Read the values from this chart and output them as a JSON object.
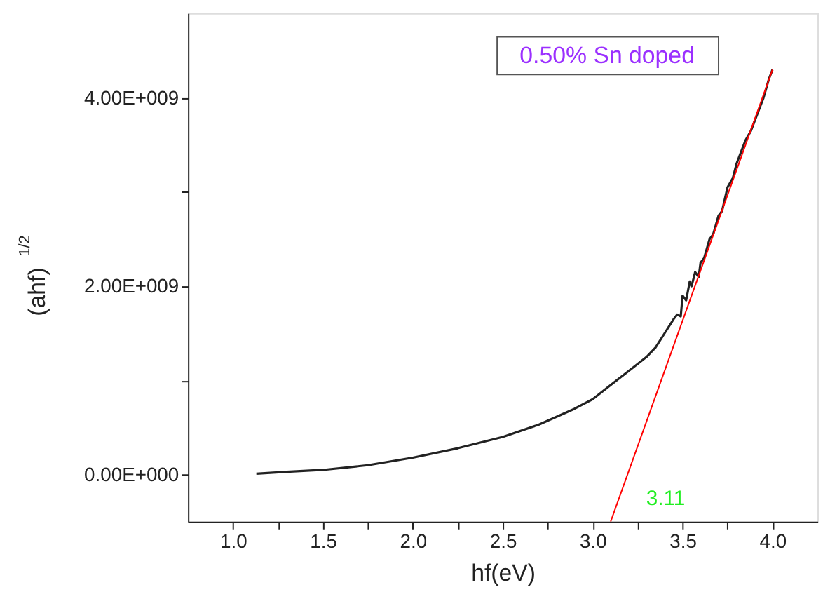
{
  "chart_data": {
    "type": "line",
    "xlabel": "hf(eV)",
    "ylabel": "(ahf)$^{1/2}$",
    "xlim": [
      0.75,
      4.25
    ],
    "ylim": [
      -500000000,
      4900000000
    ],
    "xticks": [
      {
        "value": 1.0,
        "label": "1.0"
      },
      {
        "value": 1.25,
        "label": null
      },
      {
        "value": 1.5,
        "label": "1.5"
      },
      {
        "value": 1.75,
        "label": null
      },
      {
        "value": 2.0,
        "label": "2.0"
      },
      {
        "value": 2.25,
        "label": null
      },
      {
        "value": 2.5,
        "label": "2.5"
      },
      {
        "value": 2.75,
        "label": null
      },
      {
        "value": 3.0,
        "label": "3.0"
      },
      {
        "value": 3.25,
        "label": null
      },
      {
        "value": 3.5,
        "label": "3.5"
      },
      {
        "value": 3.75,
        "label": null
      },
      {
        "value": 4.0,
        "label": "4.0"
      }
    ],
    "yticks": [
      {
        "value": 0,
        "label": "0.00E+000"
      },
      {
        "value": 1000000000,
        "label": null
      },
      {
        "value": 2000000000,
        "label": "2.00E+009"
      },
      {
        "value": 3000000000,
        "label": null
      },
      {
        "value": 4000000000,
        "label": "4.00E+009"
      }
    ],
    "grid": false,
    "marker": "none",
    "line_style": "solid",
    "series": [
      {
        "color": "#222222",
        "x": [
          1.13,
          1.3,
          1.5,
          1.75,
          2.0,
          2.25,
          2.5,
          2.7,
          2.9,
          3.0,
          3.1,
          3.2,
          3.3,
          3.35,
          3.4,
          3.45,
          3.47,
          3.49,
          3.5,
          3.52,
          3.54,
          3.55,
          3.57,
          3.59,
          3.6,
          3.62,
          3.65,
          3.67,
          3.7,
          3.72,
          3.75,
          3.78,
          3.8,
          3.83,
          3.85,
          3.88,
          3.9,
          3.93,
          3.95,
          3.98,
          4.0
        ],
        "values": [
          10000000,
          30000000,
          50000000,
          100000000,
          180000000,
          280000000,
          400000000,
          530000000,
          700000000,
          800000000,
          950000000,
          1100000000,
          1250000000,
          1350000000,
          1500000000,
          1650000000,
          1700000000,
          1680000000,
          1900000000,
          1850000000,
          2050000000,
          2000000000,
          2150000000,
          2100000000,
          2250000000,
          2300000000,
          2500000000,
          2550000000,
          2750000000,
          2800000000,
          3050000000,
          3150000000,
          3300000000,
          3450000000,
          3550000000,
          3650000000,
          3750000000,
          3900000000,
          4000000000,
          4200000000,
          4300000000
        ]
      },
      {
        "color": "#ff0000",
        "x": [
          3.1,
          4.0
        ],
        "values": [
          -500000000,
          4300000000
        ]
      }
    ],
    "annotations": [
      "0.50% Sn doped",
      "3.11"
    ]
  }
}
